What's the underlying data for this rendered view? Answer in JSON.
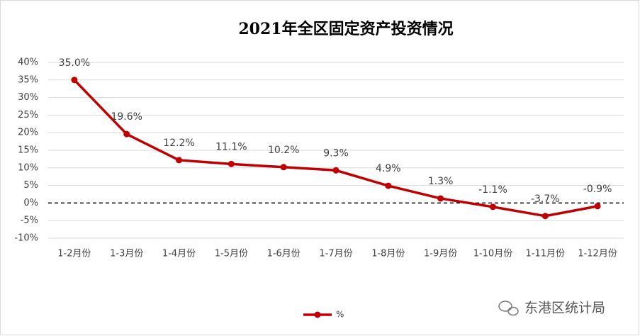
{
  "chart_data": {
    "type": "line",
    "title": "2021年全区固定资产投资情况",
    "categories": [
      "1-2月份",
      "1-3月份",
      "1-4月份",
      "1-5月份",
      "1-6月份",
      "1-7月份",
      "1-8月份",
      "1-9月份",
      "1-10月份",
      "1-11月份",
      "1-12月份"
    ],
    "series": [
      {
        "name": "%",
        "color": "#c00000",
        "values": [
          35.0,
          19.6,
          12.2,
          11.1,
          10.2,
          9.3,
          4.9,
          1.3,
          -1.1,
          -3.7,
          -0.9
        ],
        "value_labels": [
          "35.0%",
          "19.6%",
          "12.2%",
          "11.1%",
          "10.2%",
          "9.3%",
          "4.9%",
          "1.3%",
          "-1.1%",
          "-3.7%",
          "-0.9%"
        ]
      }
    ],
    "ylim": [
      -10,
      40
    ],
    "yticks": [
      {
        "value": -10,
        "label": "-10%"
      },
      {
        "value": -5,
        "label": "-5%"
      },
      {
        "value": 0,
        "label": "0%"
      },
      {
        "value": 5,
        "label": "5%"
      },
      {
        "value": 10,
        "label": "10%"
      },
      {
        "value": 15,
        "label": "15%"
      },
      {
        "value": 20,
        "label": "20%"
      },
      {
        "value": 25,
        "label": "25%"
      },
      {
        "value": 30,
        "label": "30%"
      },
      {
        "value": 35,
        "label": "35%"
      },
      {
        "value": 40,
        "label": "40%"
      }
    ],
    "grid": true,
    "legend": "bottom",
    "watermark": "东港区统计局"
  }
}
